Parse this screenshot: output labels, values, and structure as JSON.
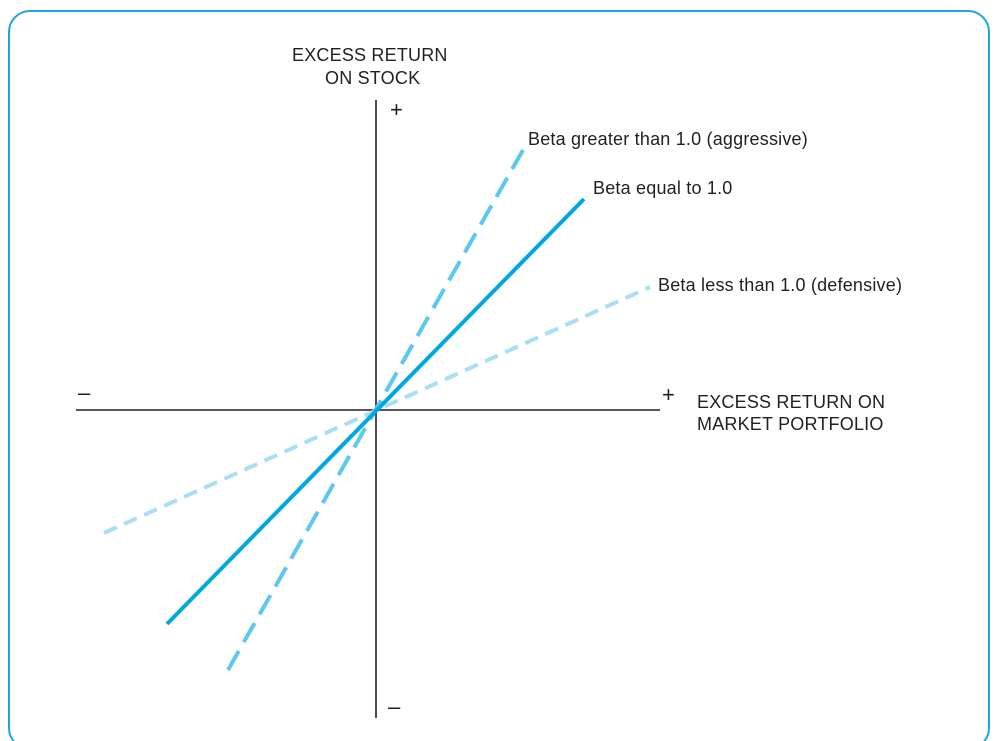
{
  "y_axis": {
    "label_line1": "EXCESS RETURN",
    "label_line2": "ON STOCK",
    "positive_sign": "+",
    "negative_sign": "–"
  },
  "x_axis": {
    "label_line1": "EXCESS RETURN ON",
    "label_line2": "MARKET PORTFOLIO",
    "positive_sign": "+",
    "negative_sign": "–"
  },
  "lines": {
    "aggressive": {
      "label": "Beta greater than 1.0 (aggressive)",
      "color": "#5cc8ef",
      "style": "dashed"
    },
    "market": {
      "label": "Beta equal to 1.0",
      "color": "#00a8e1",
      "style": "solid"
    },
    "defensive": {
      "label": "Beta less than 1.0 (defensive)",
      "color": "#a9def5",
      "style": "dashed"
    }
  },
  "colors": {
    "frame": "#1aa6df",
    "axes": "#231f20"
  }
}
